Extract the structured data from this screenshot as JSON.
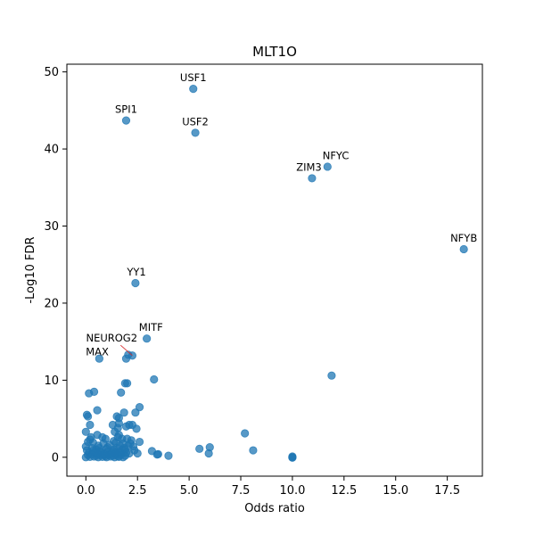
{
  "chart_data": {
    "type": "scatter",
    "title": "MLT1O",
    "xlabel": "Odds ratio",
    "ylabel": "-Log10 FDR",
    "xlim": [
      -0.92,
      19.2
    ],
    "ylim": [
      -2.45,
      51.0
    ],
    "xticks": [
      0.0,
      2.5,
      5.0,
      7.5,
      10.0,
      12.5,
      15.0,
      17.5
    ],
    "xtick_labels": [
      "0.0",
      "2.5",
      "5.0",
      "7.5",
      "10.0",
      "12.5",
      "15.0",
      "17.5"
    ],
    "yticks": [
      0,
      10,
      20,
      30,
      40,
      50
    ],
    "ytick_labels": [
      "0",
      "10",
      "20",
      "30",
      "40",
      "50"
    ],
    "grid": false,
    "legend": "none",
    "marker_color": "#1f77b4",
    "series": [
      {
        "points": [
          [
            5.2,
            47.8
          ],
          [
            1.95,
            43.7
          ],
          [
            5.3,
            42.1
          ],
          [
            11.7,
            37.7
          ],
          [
            10.95,
            36.2
          ],
          [
            18.3,
            27.0
          ],
          [
            2.4,
            22.6
          ],
          [
            2.95,
            15.4
          ],
          [
            2.25,
            13.2
          ],
          [
            1.95,
            12.8
          ],
          [
            2.05,
            13.3
          ],
          [
            0.65,
            12.8
          ],
          [
            11.9,
            10.6
          ],
          [
            3.3,
            10.1
          ],
          [
            1.9,
            9.6
          ],
          [
            2.0,
            9.6
          ],
          [
            0.4,
            8.5
          ],
          [
            0.15,
            8.3
          ],
          [
            1.7,
            8.4
          ],
          [
            2.6,
            6.5
          ],
          [
            2.4,
            5.8
          ],
          [
            0.55,
            6.1
          ],
          [
            1.85,
            5.8
          ],
          [
            1.5,
            5.3
          ],
          [
            1.6,
            5.1
          ],
          [
            0.05,
            5.5
          ],
          [
            0.1,
            5.3
          ],
          [
            1.3,
            4.2
          ],
          [
            2.1,
            4.2
          ],
          [
            2.25,
            4.2
          ],
          [
            1.95,
            4.0
          ],
          [
            0.2,
            4.2
          ],
          [
            2.45,
            3.7
          ],
          [
            0.0,
            3.3
          ],
          [
            7.7,
            3.1
          ],
          [
            0.55,
            2.9
          ],
          [
            0.8,
            2.6
          ],
          [
            0.95,
            2.4
          ],
          [
            1.6,
            2.9
          ],
          [
            2.6,
            2.0
          ],
          [
            0.2,
            2.3
          ],
          [
            1.35,
            2.1
          ],
          [
            2.2,
            2.2
          ],
          [
            1.8,
            1.8
          ],
          [
            6.0,
            1.3
          ],
          [
            5.5,
            1.1
          ],
          [
            8.1,
            0.9
          ],
          [
            3.2,
            0.8
          ],
          [
            0.0,
            1.4
          ],
          [
            0.3,
            1.2
          ],
          [
            0.5,
            1.0
          ],
          [
            1.0,
            1.1
          ],
          [
            1.5,
            1.2
          ],
          [
            2.5,
            0.5
          ],
          [
            3.5,
            0.4
          ],
          [
            4.0,
            0.2
          ],
          [
            5.95,
            0.5
          ],
          [
            3.45,
            0.35
          ],
          [
            0.7,
            0.8
          ],
          [
            1.25,
            0.6
          ],
          [
            1.7,
            0.5
          ],
          [
            1.4,
            3.3
          ],
          [
            1.55,
            2.6
          ],
          [
            1.75,
            2.4
          ],
          [
            0.35,
            1.9
          ],
          [
            0.6,
            1.5
          ],
          [
            10.0,
            0.0
          ],
          [
            10.0,
            0.1
          ],
          [
            10.0,
            -0.05
          ],
          [
            0.0,
            0.0
          ],
          [
            0.2,
            0.05
          ],
          [
            0.4,
            0.1
          ],
          [
            0.6,
            0.0
          ],
          [
            0.8,
            0.05
          ],
          [
            1.0,
            0.0
          ],
          [
            1.2,
            0.1
          ],
          [
            1.4,
            0.0
          ],
          [
            1.6,
            0.05
          ],
          [
            1.8,
            0.0
          ],
          [
            0.1,
            0.3
          ],
          [
            0.3,
            0.4
          ],
          [
            0.5,
            0.2
          ],
          [
            0.7,
            0.3
          ],
          [
            0.9,
            0.4
          ],
          [
            1.1,
            0.3
          ],
          [
            1.3,
            0.2
          ],
          [
            1.5,
            0.4
          ],
          [
            1.7,
            0.3
          ],
          [
            1.9,
            0.2
          ],
          [
            2.1,
            0.5
          ],
          [
            0.15,
            0.6
          ],
          [
            0.45,
            0.7
          ],
          [
            0.75,
            0.6
          ],
          [
            1.05,
            0.7
          ],
          [
            1.35,
            0.8
          ],
          [
            1.65,
            0.7
          ],
          [
            1.95,
            0.6
          ],
          [
            2.05,
            1.5
          ],
          [
            2.15,
            1.8
          ],
          [
            2.3,
            1.4
          ],
          [
            2.0,
            2.4
          ],
          [
            1.85,
            1.2
          ],
          [
            1.15,
            1.6
          ],
          [
            0.85,
            1.8
          ],
          [
            0.25,
            2.6
          ],
          [
            0.1,
            2.0
          ],
          [
            1.45,
            1.9
          ],
          [
            1.65,
            1.5
          ],
          [
            0.55,
            0.45
          ],
          [
            0.95,
            0.15
          ],
          [
            1.25,
            0.45
          ],
          [
            1.55,
            0.15
          ],
          [
            1.75,
            0.95
          ],
          [
            0.35,
            0.85
          ],
          [
            0.05,
            0.9
          ],
          [
            2.35,
            0.9
          ],
          [
            1.05,
            1.3
          ],
          [
            1.35,
            1.0
          ],
          [
            0.65,
            1.2
          ],
          [
            1.9,
            1.0
          ],
          [
            1.55,
            3.8
          ],
          [
            1.6,
            4.4
          ],
          [
            1.45,
            0.55
          ],
          [
            0.85,
            0.3
          ]
        ]
      }
    ],
    "annotations": [
      {
        "text": "USF1",
        "x": 5.2,
        "y": 47.8,
        "tx": 5.2,
        "ty": 48.8
      },
      {
        "text": "SPI1",
        "x": 1.95,
        "y": 43.7,
        "tx": 1.95,
        "ty": 44.7
      },
      {
        "text": "USF2",
        "x": 5.3,
        "y": 42.1,
        "tx": 5.3,
        "ty": 43.1
      },
      {
        "text": "NFYC",
        "x": 11.7,
        "y": 37.7,
        "tx": 12.1,
        "ty": 38.7
      },
      {
        "text": "ZIM3",
        "x": 10.95,
        "y": 36.2,
        "tx": 10.8,
        "ty": 37.2
      },
      {
        "text": "NFYB",
        "x": 18.3,
        "y": 27.0,
        "tx": 18.3,
        "ty": 28.0
      },
      {
        "text": "YY1",
        "x": 2.4,
        "y": 22.6,
        "tx": 2.45,
        "ty": 23.6
      },
      {
        "text": "MITF",
        "x": 2.95,
        "y": 15.4,
        "tx": 3.15,
        "ty": 16.4
      },
      {
        "text": "NEUROG2",
        "x": 2.25,
        "y": 13.2,
        "tx": 1.25,
        "ty": 15.0,
        "arrow": true
      },
      {
        "text": "MAX",
        "x": 0.65,
        "y": 12.8,
        "tx": 0.55,
        "ty": 13.2
      }
    ]
  }
}
